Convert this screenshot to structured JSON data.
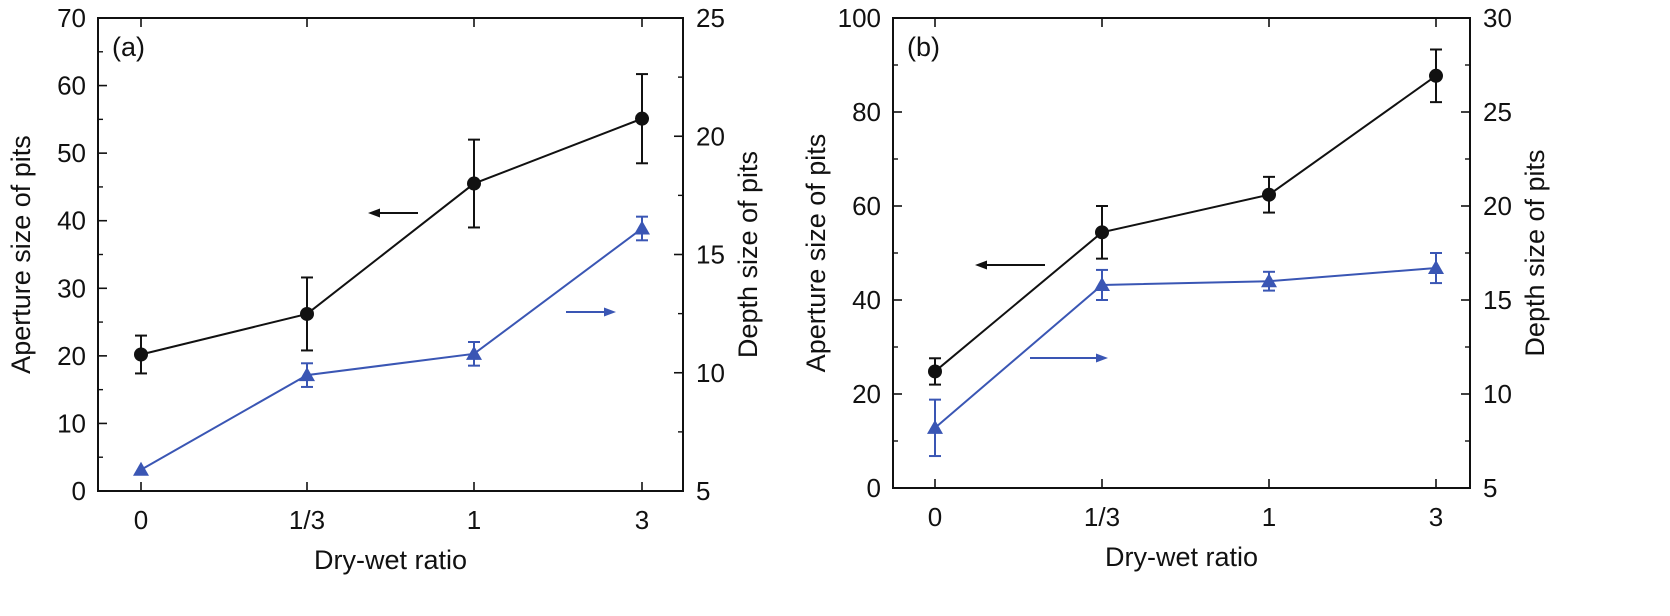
{
  "colors": {
    "axis": "#111111",
    "black_series": "#111111",
    "blue_series": "#3a56b4"
  },
  "chart_data": [
    {
      "type": "line",
      "panel_label": "(a)",
      "categories": [
        "0",
        "1/3",
        "1",
        "3"
      ],
      "xlabel": "Dry-wet ratio",
      "ylabel_left": "Aperture size of pits",
      "ylabel_right": "Depth size of pits",
      "ylim_left": [
        0,
        70
      ],
      "yticks_left": [
        0,
        10,
        20,
        30,
        40,
        50,
        60,
        70
      ],
      "ylim_right": [
        5,
        25
      ],
      "yticks_right": [
        5,
        10,
        15,
        20,
        25
      ],
      "grid": false,
      "series": [
        {
          "axis": "left",
          "marker": "circle",
          "color": "#111111",
          "values": [
            20.2,
            26.2,
            45.5,
            55.1
          ],
          "errors": [
            2.8,
            5.4,
            6.5,
            6.6
          ],
          "arrow_direction": "left"
        },
        {
          "axis": "right",
          "marker": "triangle",
          "color": "#3a56b4",
          "values": [
            5.9,
            9.9,
            10.8,
            16.1
          ],
          "errors": [
            0.0,
            0.5,
            0.5,
            0.5
          ],
          "arrow_direction": "right"
        }
      ]
    },
    {
      "type": "line",
      "panel_label": "(b)",
      "categories": [
        "0",
        "1/3",
        "1",
        "3"
      ],
      "xlabel": "Dry-wet ratio",
      "ylabel_left": "Aperture size of pits",
      "ylabel_right": "Depth size of pits",
      "ylim_left": [
        0,
        100
      ],
      "yticks_left": [
        0,
        20,
        40,
        60,
        80,
        100
      ],
      "ylim_right": [
        5,
        30
      ],
      "yticks_right": [
        5,
        10,
        15,
        20,
        25,
        30
      ],
      "grid": false,
      "series": [
        {
          "axis": "left",
          "marker": "circle",
          "color": "#111111",
          "values": [
            24.8,
            54.4,
            62.4,
            87.7
          ],
          "errors": [
            2.8,
            5.6,
            3.8,
            5.6
          ],
          "arrow_direction": "left"
        },
        {
          "axis": "right",
          "marker": "triangle",
          "color": "#3a56b4",
          "values": [
            8.2,
            15.8,
            16.0,
            16.7
          ],
          "errors": [
            1.5,
            0.8,
            0.5,
            0.8
          ],
          "arrow_direction": "right"
        }
      ]
    }
  ]
}
